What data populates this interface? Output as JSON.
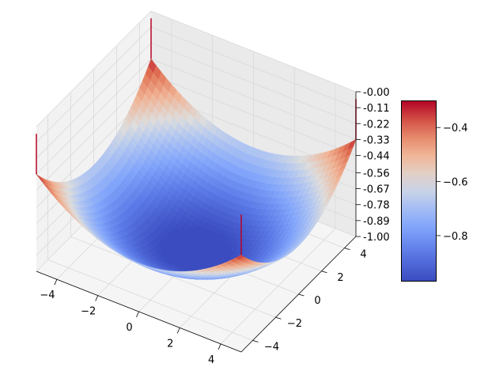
{
  "chart_data": {
    "type": "surface3d",
    "title": "",
    "xlabel": "",
    "ylabel": "",
    "zlabel": "",
    "x_ticks": [
      "−4",
      "−2",
      "0",
      "2",
      "4"
    ],
    "y_ticks": [
      "−4",
      "−2",
      "0",
      "2",
      "4"
    ],
    "z_ticks": [
      "-1.00",
      "-0.89",
      "-0.78",
      "-0.67",
      "-0.56",
      "-0.44",
      "-0.33",
      "-0.22",
      "-0.11",
      "-0.00"
    ],
    "xlim": [
      -5,
      5
    ],
    "ylim": [
      -5,
      5
    ],
    "zlim": [
      -1.0,
      0.0
    ],
    "surface_samples": {
      "x": [
        -5,
        -2.5,
        0,
        2.5,
        5
      ],
      "y": [
        -5,
        -2.5,
        0,
        2.5,
        5
      ],
      "z": [
        [
          -0.33,
          -0.72,
          -0.82,
          -0.72,
          -0.33
        ],
        [
          -0.72,
          -0.9,
          -0.95,
          -0.9,
          -0.72
        ],
        [
          -0.82,
          -0.95,
          -1.0,
          -0.95,
          -0.82
        ],
        [
          -0.72,
          -0.9,
          -0.95,
          -0.9,
          -0.72
        ],
        [
          -0.33,
          -0.72,
          -0.82,
          -0.72,
          -0.33
        ]
      ]
    },
    "spikes_z": [
      -0.05,
      -0.05,
      -0.05,
      -0.05
    ],
    "colormap": "coolwarm",
    "colorbar_range": [
      -0.97,
      -0.3
    ],
    "colorbar_ticks": [
      "−0.4",
      "−0.6",
      "−0.8"
    ],
    "colors": {
      "low": "#3b4cc0",
      "mid": "#dddddd",
      "high": "#b40426",
      "pane": "#f2f2f2",
      "grid": "#d9d9d9"
    },
    "grid": true
  }
}
